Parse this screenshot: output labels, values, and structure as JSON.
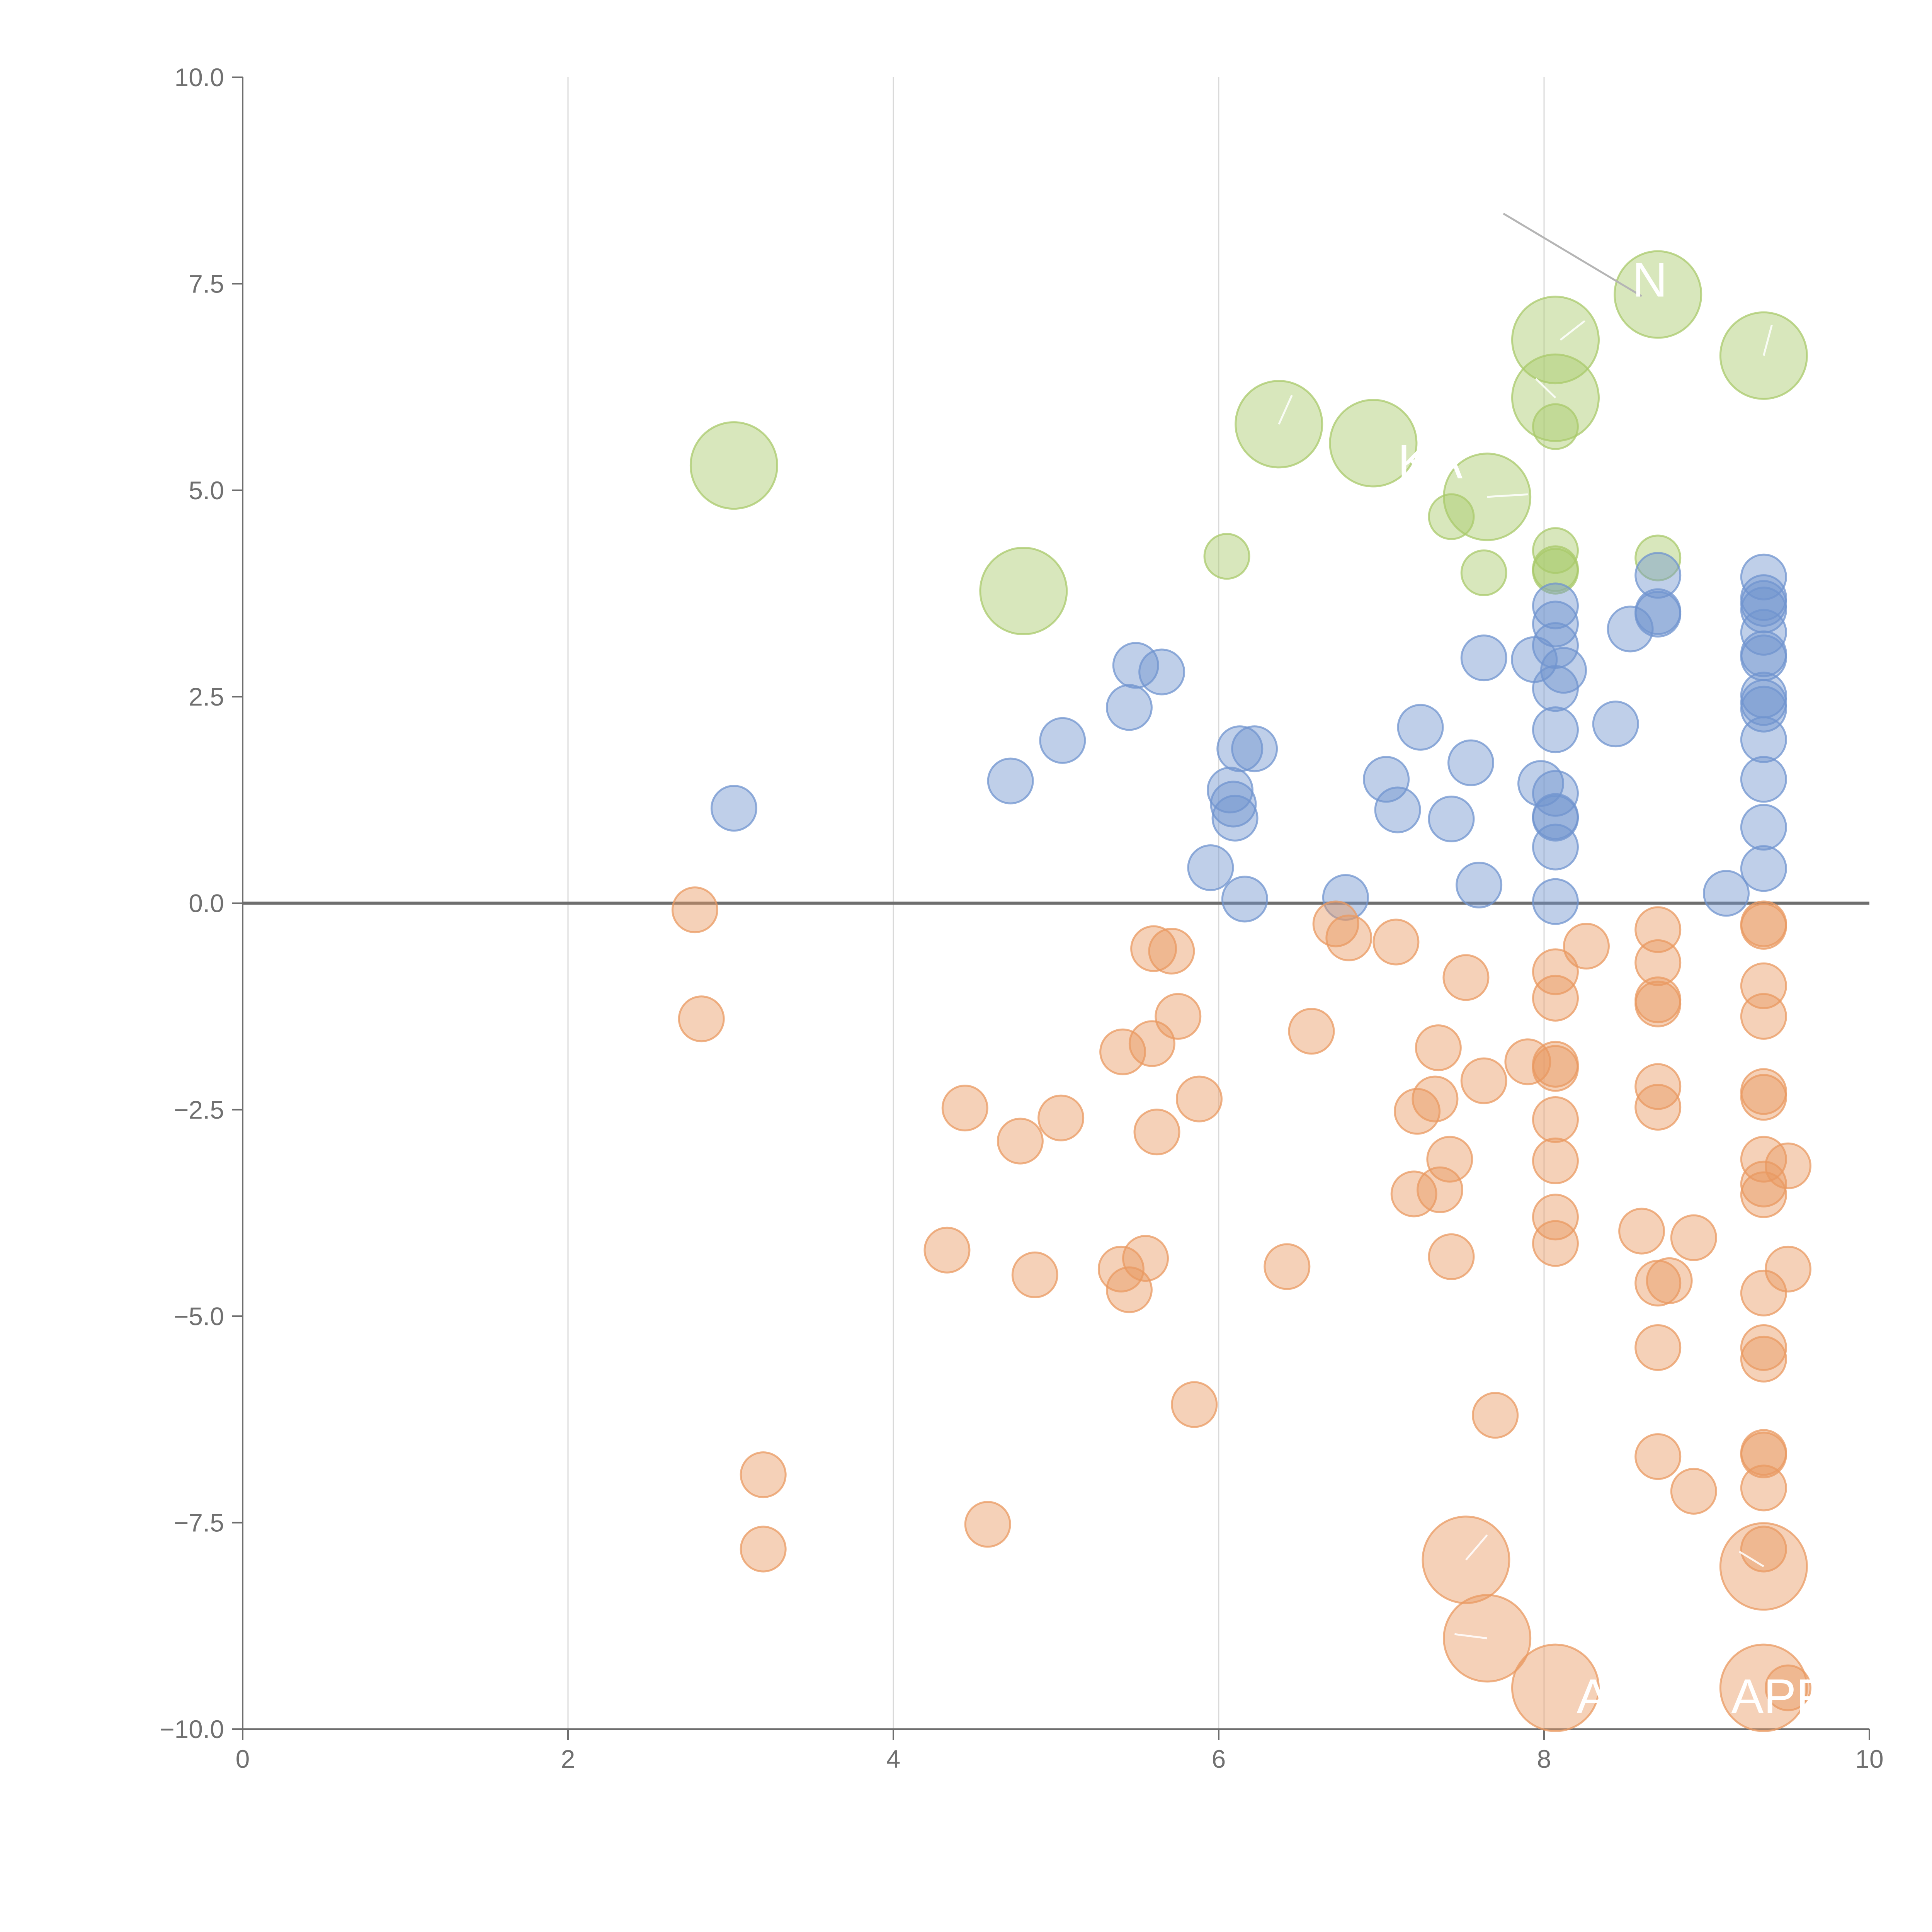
{
  "colors": {
    "positive_blue": "#7094cf",
    "negative_orange": "#e99a62",
    "highlight_green": "#a9c96b"
  },
  "chart_data": {
    "type": "scatter",
    "title": "",
    "xlabel": "",
    "ylabel": "",
    "xlim": [
      0,
      10
    ],
    "ylim": [
      -10,
      10
    ],
    "x_ticks": [
      "0",
      "2",
      "4",
      "6",
      "8",
      "10"
    ],
    "y_ticks": [
      "−10.0",
      "−7.5",
      "−5.0",
      "−2.5",
      "0.0",
      "2.5",
      "5.0",
      "7.5",
      "10.0"
    ],
    "grid": "vertical",
    "reference_line_y": 0,
    "annotations": [
      {
        "text": "N",
        "x": 8.65,
        "y": 7.55
      },
      {
        "text": "KA",
        "x": 7.3,
        "y": 5.35
      },
      {
        "text": "A",
        "x": 8.3,
        "y": -9.6
      },
      {
        "text": "APP",
        "x": 9.45,
        "y": -9.6
      }
    ],
    "series": [
      {
        "color_key": "highlight_green",
        "size": "large",
        "points": [
          {
            "x": 3.02,
            "y": 5.3
          },
          {
            "x": 4.8,
            "y": 3.78
          },
          {
            "x": 6.37,
            "y": 5.8
          },
          {
            "x": 6.95,
            "y": 5.57
          },
          {
            "x": 7.65,
            "y": 4.92
          },
          {
            "x": 8.07,
            "y": 6.82
          },
          {
            "x": 8.07,
            "y": 6.12
          },
          {
            "x": 8.7,
            "y": 7.37
          },
          {
            "x": 9.35,
            "y": 6.63
          }
        ]
      },
      {
        "color_key": "highlight_green",
        "size": "small",
        "points": [
          {
            "x": 6.05,
            "y": 4.2
          },
          {
            "x": 7.43,
            "y": 4.68
          },
          {
            "x": 7.63,
            "y": 4.0
          },
          {
            "x": 8.07,
            "y": 5.77
          },
          {
            "x": 8.07,
            "y": 4.27
          },
          {
            "x": 8.07,
            "y": 4.02
          },
          {
            "x": 8.07,
            "y": 4.05
          },
          {
            "x": 8.7,
            "y": 4.18
          }
        ]
      },
      {
        "color_key": "positive_blue",
        "size": "small",
        "points": [
          {
            "x": 3.02,
            "y": 1.15
          },
          {
            "x": 4.72,
            "y": 1.48
          },
          {
            "x": 5.04,
            "y": 1.97
          },
          {
            "x": 5.45,
            "y": 2.37
          },
          {
            "x": 5.49,
            "y": 2.88
          },
          {
            "x": 5.65,
            "y": 2.8
          },
          {
            "x": 5.95,
            "y": 0.43
          },
          {
            "x": 6.07,
            "y": 1.37
          },
          {
            "x": 6.09,
            "y": 1.2
          },
          {
            "x": 6.1,
            "y": 1.03
          },
          {
            "x": 6.13,
            "y": 1.87
          },
          {
            "x": 6.16,
            "y": 0.05
          },
          {
            "x": 6.22,
            "y": 1.87
          },
          {
            "x": 6.78,
            "y": 0.07
          },
          {
            "x": 7.03,
            "y": 1.5
          },
          {
            "x": 7.1,
            "y": 1.13
          },
          {
            "x": 7.24,
            "y": 2.13
          },
          {
            "x": 7.43,
            "y": 1.02
          },
          {
            "x": 7.55,
            "y": 1.7
          },
          {
            "x": 7.6,
            "y": 0.22
          },
          {
            "x": 7.63,
            "y": 2.97
          },
          {
            "x": 7.94,
            "y": 2.95
          },
          {
            "x": 7.98,
            "y": 1.45
          },
          {
            "x": 8.07,
            "y": 3.6
          },
          {
            "x": 8.07,
            "y": 3.38
          },
          {
            "x": 8.07,
            "y": 3.12
          },
          {
            "x": 8.07,
            "y": 2.6
          },
          {
            "x": 8.07,
            "y": 2.1
          },
          {
            "x": 8.07,
            "y": 1.33
          },
          {
            "x": 8.07,
            "y": 1.05
          },
          {
            "x": 8.07,
            "y": 1.03
          },
          {
            "x": 8.07,
            "y": 0.68
          },
          {
            "x": 8.07,
            "y": 0.02
          },
          {
            "x": 8.12,
            "y": 2.82
          },
          {
            "x": 8.44,
            "y": 2.17
          },
          {
            "x": 8.53,
            "y": 3.32
          },
          {
            "x": 8.7,
            "y": 3.97
          },
          {
            "x": 8.7,
            "y": 3.53
          },
          {
            "x": 8.7,
            "y": 3.5
          },
          {
            "x": 9.12,
            "y": 0.12
          },
          {
            "x": 9.35,
            "y": 3.95
          },
          {
            "x": 9.35,
            "y": 3.7
          },
          {
            "x": 9.35,
            "y": 3.63
          },
          {
            "x": 9.35,
            "y": 3.55
          },
          {
            "x": 9.35,
            "y": 3.28
          },
          {
            "x": 9.35,
            "y": 3.02
          },
          {
            "x": 9.35,
            "y": 2.97
          },
          {
            "x": 9.35,
            "y": 2.52
          },
          {
            "x": 9.35,
            "y": 2.43
          },
          {
            "x": 9.35,
            "y": 2.35
          },
          {
            "x": 9.35,
            "y": 1.98
          },
          {
            "x": 9.35,
            "y": 1.5
          },
          {
            "x": 9.35,
            "y": 0.92
          },
          {
            "x": 9.35,
            "y": 0.42
          }
        ]
      },
      {
        "color_key": "negative_orange",
        "size": "small",
        "points": [
          {
            "x": 2.78,
            "y": -0.08
          },
          {
            "x": 2.82,
            "y": -1.4
          },
          {
            "x": 3.2,
            "y": -6.92
          },
          {
            "x": 3.2,
            "y": -7.82
          },
          {
            "x": 4.33,
            "y": -4.2
          },
          {
            "x": 4.44,
            "y": -2.48
          },
          {
            "x": 4.58,
            "y": -7.52
          },
          {
            "x": 4.78,
            "y": -2.88
          },
          {
            "x": 4.87,
            "y": -4.5
          },
          {
            "x": 5.03,
            "y": -2.6
          },
          {
            "x": 5.4,
            "y": -4.43
          },
          {
            "x": 5.41,
            "y": -1.8
          },
          {
            "x": 5.45,
            "y": -4.68
          },
          {
            "x": 5.55,
            "y": -4.3
          },
          {
            "x": 5.59,
            "y": -1.7
          },
          {
            "x": 5.6,
            "y": -0.55
          },
          {
            "x": 5.62,
            "y": -2.77
          },
          {
            "x": 5.71,
            "y": -0.58
          },
          {
            "x": 5.75,
            "y": -1.37
          },
          {
            "x": 5.85,
            "y": -6.07
          },
          {
            "x": 5.88,
            "y": -2.37
          },
          {
            "x": 6.42,
            "y": -4.4
          },
          {
            "x": 6.57,
            "y": -1.55
          },
          {
            "x": 6.72,
            "y": -0.25
          },
          {
            "x": 6.8,
            "y": -0.42
          },
          {
            "x": 7.09,
            "y": -0.47
          },
          {
            "x": 7.2,
            "y": -3.52
          },
          {
            "x": 7.22,
            "y": -2.52
          },
          {
            "x": 7.33,
            "y": -2.37
          },
          {
            "x": 7.35,
            "y": -1.75
          },
          {
            "x": 7.36,
            "y": -3.47
          },
          {
            "x": 7.42,
            "y": -3.1
          },
          {
            "x": 7.43,
            "y": -4.28
          },
          {
            "x": 7.52,
            "y": -0.9
          },
          {
            "x": 7.63,
            "y": -2.15
          },
          {
            "x": 7.7,
            "y": -6.2
          },
          {
            "x": 7.9,
            "y": -1.92
          },
          {
            "x": 8.07,
            "y": -0.83
          },
          {
            "x": 8.07,
            "y": -1.15
          },
          {
            "x": 8.07,
            "y": -1.95
          },
          {
            "x": 8.07,
            "y": -2.0
          },
          {
            "x": 8.07,
            "y": -2.62
          },
          {
            "x": 8.07,
            "y": -3.12
          },
          {
            "x": 8.07,
            "y": -3.8
          },
          {
            "x": 8.07,
            "y": -4.12
          },
          {
            "x": 8.26,
            "y": -0.52
          },
          {
            "x": 8.6,
            "y": -3.97
          },
          {
            "x": 8.7,
            "y": -0.32
          },
          {
            "x": 8.7,
            "y": -0.72
          },
          {
            "x": 8.7,
            "y": -1.17
          },
          {
            "x": 8.7,
            "y": -1.22
          },
          {
            "x": 8.7,
            "y": -2.22
          },
          {
            "x": 8.7,
            "y": -2.47
          },
          {
            "x": 8.7,
            "y": -4.6
          },
          {
            "x": 8.7,
            "y": -5.38
          },
          {
            "x": 8.7,
            "y": -6.7
          },
          {
            "x": 8.77,
            "y": -4.57
          },
          {
            "x": 8.92,
            "y": -4.05
          },
          {
            "x": 8.92,
            "y": -7.12
          },
          {
            "x": 9.35,
            "y": -0.25
          },
          {
            "x": 9.35,
            "y": -0.28
          },
          {
            "x": 9.35,
            "y": -1.0
          },
          {
            "x": 9.35,
            "y": -1.37
          },
          {
            "x": 9.35,
            "y": -2.28
          },
          {
            "x": 9.35,
            "y": -2.35
          },
          {
            "x": 9.35,
            "y": -3.1
          },
          {
            "x": 9.35,
            "y": -3.4
          },
          {
            "x": 9.35,
            "y": -3.53
          },
          {
            "x": 9.35,
            "y": -4.72
          },
          {
            "x": 9.35,
            "y": -5.38
          },
          {
            "x": 9.35,
            "y": -5.52
          },
          {
            "x": 9.35,
            "y": -6.65
          },
          {
            "x": 9.35,
            "y": -6.68
          },
          {
            "x": 9.35,
            "y": -7.08
          },
          {
            "x": 9.35,
            "y": -7.82
          },
          {
            "x": 9.5,
            "y": -3.18
          },
          {
            "x": 9.5,
            "y": -4.43
          },
          {
            "x": 9.5,
            "y": -9.5
          }
        ]
      },
      {
        "color_key": "negative_orange",
        "size": "large",
        "points": [
          {
            "x": 7.52,
            "y": -7.95
          },
          {
            "x": 7.65,
            "y": -8.9
          },
          {
            "x": 8.07,
            "y": -9.5
          },
          {
            "x": 9.35,
            "y": -8.03
          },
          {
            "x": 9.35,
            "y": -9.5
          }
        ]
      }
    ]
  }
}
